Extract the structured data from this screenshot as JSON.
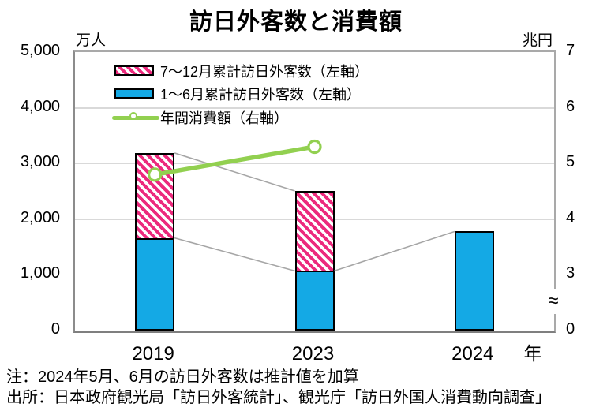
{
  "title": "訪日外客数と消費額",
  "left_axis_unit": "万人",
  "right_axis_unit": "兆円",
  "x_axis_unit": "年",
  "legend": {
    "items": [
      {
        "label": "7〜12月累計訪日外客数（左軸）",
        "swatch": "pink-hatched-bar"
      },
      {
        "label": "1〜6月累計訪日外客数（左軸）",
        "swatch": "blue-bar"
      },
      {
        "label": "年間消費額（右軸）",
        "swatch": "green-line-marker"
      }
    ]
  },
  "notes": {
    "note": "注：2024年5月、6月の訪日外客数は推計値を加算",
    "source": "出所：日本政府観光局「訪日外客統計」、観光庁「訪日外国人消費動向調査」"
  },
  "colors": {
    "pink": "#ec2a7d",
    "blue": "#14a9e5",
    "green": "#92d050",
    "gridline": "#d9d9d9",
    "connector": "#a6a6a6",
    "marker_fill": "#ffffff"
  },
  "chart_data": {
    "type": "combo-stacked-bar-line",
    "title": "訪日外客数と消費額",
    "categories": [
      "2019",
      "2023",
      "2024"
    ],
    "left_axis": {
      "unit": "万人",
      "min": 0,
      "max": 5000,
      "tick_labels": [
        "5,000",
        "4,000",
        "3,000",
        "2,000",
        "1,000",
        "0"
      ],
      "grid": true
    },
    "right_axis": {
      "unit": "兆円",
      "tick_labels": [
        "7",
        "6",
        "5",
        "4",
        "3"
      ],
      "zero_label": "0",
      "break_symbol": "≈",
      "mapping_hint": "right value v is plotted at left-axis equivalent (v-2)*1000; axis broken between 0 and 3"
    },
    "x_axis": {
      "unit": "年"
    },
    "series": [
      {
        "name": "1〜6月累計訪日外客数（左軸）",
        "type": "bar",
        "stack_order": "bottom",
        "color": "#14a9e5",
        "values": [
          1663,
          1071,
          1778
        ]
      },
      {
        "name": "7〜12月累計訪日外客数（左軸）",
        "type": "bar",
        "stack_order": "top",
        "color": "#ec2a7d",
        "pattern": "diagonal-hatch",
        "values": [
          1525,
          1436,
          0
        ]
      },
      {
        "name": "年間消費額（右軸）",
        "type": "line",
        "axis": "right",
        "color": "#92d050",
        "values": [
          4.8,
          5.3,
          null
        ]
      }
    ],
    "bar_totals": [
      3188,
      2507,
      1778
    ],
    "legend_position": "top-inside",
    "connector_lines": "gray series lines join consecutive stack-segment tops"
  }
}
